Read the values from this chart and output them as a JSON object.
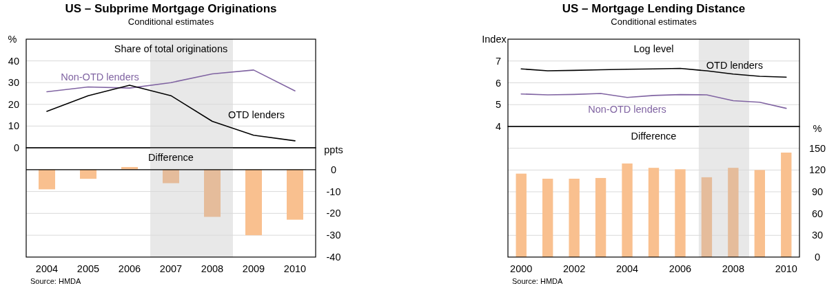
{
  "chart_data": [
    {
      "type": "line",
      "title": "US – Subprime Mortgage Originations",
      "subtitle": "Conditional estimates",
      "ylabel": "%",
      "annotations": [
        "Share of total originations"
      ],
      "x": [
        2004,
        2005,
        2006,
        2007,
        2008,
        2009,
        2010
      ],
      "xlim": [
        2003.5,
        2010.5
      ],
      "ylim": [
        0,
        50
      ],
      "yticks": [
        0,
        10,
        20,
        30,
        40
      ],
      "grid": "y",
      "tick_labels": "y",
      "series": [
        {
          "name": "Non-OTD lenders",
          "color": "#8064a2",
          "values": [
            25.8,
            28,
            27.5,
            30,
            34,
            35.8,
            26.2
          ]
        },
        {
          "name": "OTD lenders",
          "color": "#000000",
          "values": [
            16.8,
            24,
            28.8,
            24,
            12.2,
            5.8,
            3.2
          ]
        }
      ],
      "bands": [
        {
          "axis": "x",
          "from": 2006.5,
          "to": 2008.5,
          "color": "#e8e8e8"
        }
      ]
    },
    {
      "type": "bar",
      "y2label": "ppts",
      "annotations": [
        "Difference",
        "Source: HMDA"
      ],
      "x": [
        2004,
        2005,
        2006,
        2007,
        2008,
        2009,
        2010
      ],
      "xlim": [
        2003.5,
        2010.5
      ],
      "xticks": [
        2004,
        2005,
        2006,
        2007,
        2008,
        2009,
        2010
      ],
      "y2lim": [
        -40,
        10
      ],
      "y2ticks": [
        -40,
        -30,
        -20,
        -10,
        0
      ],
      "grid": "y",
      "series": [
        {
          "axis": "y2",
          "colors": [
            "#f9c08f",
            "#f9c08f",
            "#f9c08f",
            "#e5bc9b",
            "#e5bc9b",
            "#f9c08f",
            "#f9c08f"
          ],
          "values": [
            -9,
            -4.2,
            1.2,
            -6.2,
            -21.6,
            -30,
            -22.9
          ]
        }
      ],
      "bands": [
        {
          "axis": "x",
          "from": 2006.5,
          "to": 2008.5,
          "color": "#e8e8e8"
        }
      ]
    },
    {
      "type": "line",
      "title": "US – Mortgage Lending Distance",
      "subtitle": "Conditional estimates",
      "ylabel": "Index",
      "annotations": [
        "Log level"
      ],
      "x": [
        2000,
        2001,
        2002,
        2003,
        2004,
        2005,
        2006,
        2007,
        2008,
        2009,
        2010
      ],
      "xlim": [
        1999.5,
        2010.5
      ],
      "ylim": [
        4,
        8
      ],
      "yticks": [
        4,
        5,
        6,
        7
      ],
      "grid": "y",
      "tick_labels": "y",
      "series": [
        {
          "name": "OTD lenders",
          "color": "#000000",
          "values": [
            6.64,
            6.55,
            6.57,
            6.6,
            6.62,
            6.64,
            6.66,
            6.55,
            6.4,
            6.3,
            6.26
          ]
        },
        {
          "name": "Non-OTD lenders",
          "color": "#8064a2",
          "values": [
            5.49,
            5.45,
            5.47,
            5.51,
            5.33,
            5.42,
            5.46,
            5.45,
            5.18,
            5.11,
            4.83
          ]
        }
      ],
      "bands": [
        {
          "axis": "x",
          "from": 2006.7,
          "to": 2008.6,
          "color": "#e8e8e8"
        }
      ]
    },
    {
      "type": "bar",
      "y2label": "%",
      "annotations": [
        "Difference",
        "Source: HMDA"
      ],
      "x": [
        2000,
        2001,
        2002,
        2003,
        2004,
        2005,
        2006,
        2007,
        2008,
        2009,
        2010
      ],
      "xlim": [
        1999.5,
        2010.5
      ],
      "xticks": [
        2000,
        2002,
        2004,
        2006,
        2008,
        2010
      ],
      "y2lim": [
        0,
        180
      ],
      "y2ticks": [
        0,
        30,
        60,
        90,
        120,
        150
      ],
      "grid": "y",
      "series": [
        {
          "axis": "y2",
          "colors": [
            "#f9c08f",
            "#f9c08f",
            "#f9c08f",
            "#f9c08f",
            "#f9c08f",
            "#f9c08f",
            "#f9c08f",
            "#e5bc9b",
            "#e5bc9b",
            "#f9c08f",
            "#f9c08f"
          ],
          "values": [
            115,
            108,
            108,
            109,
            129,
            123,
            121,
            110,
            123,
            120,
            144
          ]
        }
      ],
      "bands": [
        {
          "axis": "x",
          "from": 2006.7,
          "to": 2008.6,
          "color": "#e8e8e8"
        }
      ]
    }
  ]
}
